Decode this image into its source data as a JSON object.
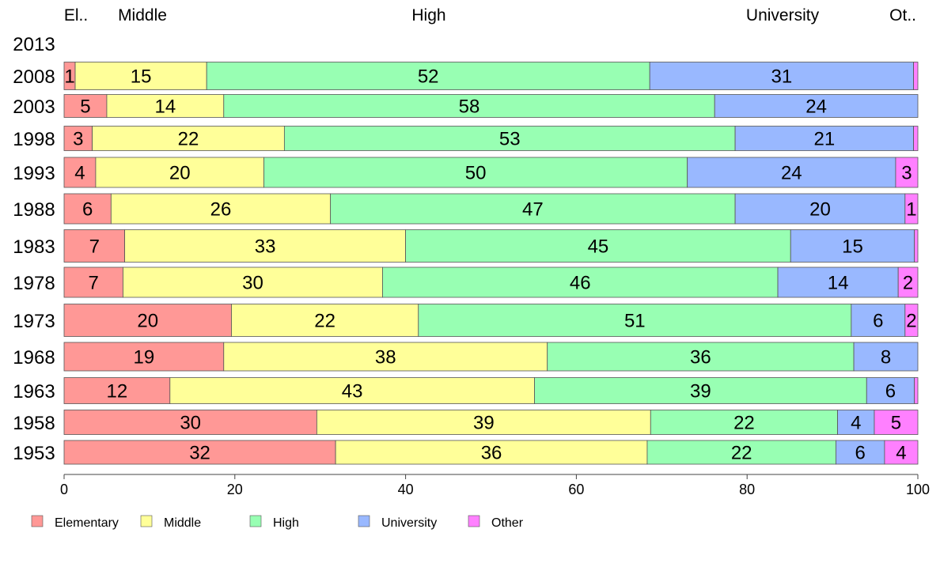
{
  "chart_data": {
    "type": "bar",
    "orientation": "horizontal",
    "stacked": true,
    "categories": [
      "2013",
      "2008",
      "2003",
      "1998",
      "1993",
      "1988",
      "1983",
      "1978",
      "1973",
      "1968",
      "1963",
      "1958",
      "1953"
    ],
    "series": [
      {
        "name": "Elementary",
        "color": "#ff9896",
        "header_label": "El..",
        "values": [
          null,
          1.3,
          5,
          3.3,
          3.7,
          5.5,
          7.1,
          6.9,
          19.6,
          18.7,
          12.4,
          29.6,
          31.8
        ],
        "labels": [
          "",
          "1",
          "5",
          "3",
          "4",
          "6",
          "7",
          "7",
          "20",
          "19",
          "12",
          "30",
          "32"
        ]
      },
      {
        "name": "Middle",
        "color": "#ffff99",
        "header_label": "Middle",
        "values": [
          null,
          15.4,
          13.7,
          22.5,
          19.7,
          25.7,
          32.9,
          30.4,
          21.9,
          37.9,
          42.7,
          39.1,
          36.5
        ],
        "labels": [
          "",
          "15",
          "14",
          "22",
          "20",
          "26",
          "33",
          "30",
          "22",
          "38",
          "43",
          "39",
          "36"
        ]
      },
      {
        "name": "High",
        "color": "#98ffb3",
        "header_label": "High",
        "values": [
          null,
          51.9,
          57.5,
          52.8,
          49.6,
          47.4,
          45.1,
          46.3,
          50.7,
          35.9,
          38.9,
          21.9,
          22.1
        ],
        "labels": [
          "",
          "52",
          "58",
          "53",
          "50",
          "47",
          "45",
          "46",
          "51",
          "36",
          "39",
          "22",
          "22"
        ]
      },
      {
        "name": "University",
        "color": "#99b8ff",
        "header_label": "University",
        "values": [
          null,
          30.9,
          23.8,
          20.9,
          24.4,
          19.9,
          14.5,
          14.1,
          6.3,
          7.5,
          5.6,
          4.3,
          5.7
        ],
        "labels": [
          "",
          "31",
          "24",
          "21",
          "24",
          "20",
          "15",
          "14",
          "6",
          "8",
          "6",
          "4",
          "6"
        ]
      },
      {
        "name": "Other",
        "color": "#ff80ff",
        "header_label": "Ot..",
        "values": [
          null,
          0.5,
          0,
          0.5,
          2.6,
          1.5,
          0.4,
          2.3,
          1.5,
          0,
          0.4,
          5.1,
          3.9
        ],
        "labels": [
          "",
          "",
          "",
          "",
          "3",
          "1",
          "",
          "2",
          "2",
          "",
          "",
          "5",
          "4"
        ]
      }
    ],
    "xlim": [
      0,
      100
    ],
    "xticks": [
      "0",
      "20",
      "40",
      "60",
      "80",
      "100"
    ],
    "legend": "bottom-left",
    "grid": false,
    "title": "",
    "xlabel": "",
    "ylabel": ""
  }
}
